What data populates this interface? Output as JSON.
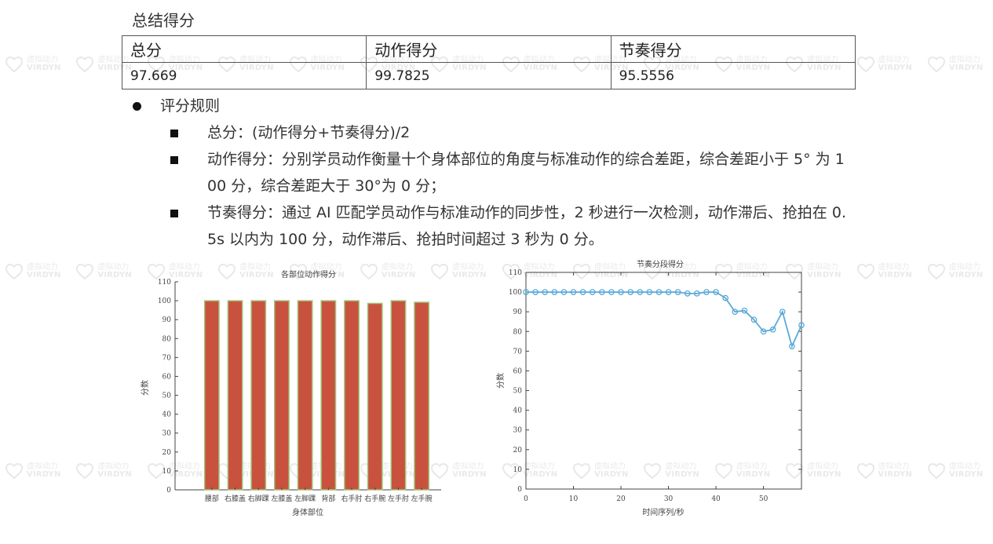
{
  "document": {
    "title": "总结得分",
    "scores": {
      "headers": [
        "总分",
        "动作得分",
        "节奏得分"
      ],
      "values": [
        "97.669",
        "99.7825",
        "95.5556"
      ]
    },
    "rules": {
      "heading": "评分规则",
      "items": [
        "总分：(动作得分+节奏得分)/2",
        "动作得分：分别学员动作衡量十个身体部位的角度与标准动作的综合差距，综合差距小于 5° 为 100 分，综合差距大于 30°为 0 分；",
        "节奏得分：通过 AI 匹配学员动作与标准动作的同步性，2 秒进行一次检测，动作滞后、抢拍在 0.5s 以内为 100 分，动作滞后、抢拍时间超过 3 秒为 0 分。"
      ]
    }
  },
  "watermark": {
    "text_cn": "虚拟动力",
    "text_en": "VIRDYN",
    "icon": "heart-logo-icon"
  },
  "chart_data": [
    {
      "type": "bar",
      "title": "各部位动作得分",
      "xlabel": "身体部位",
      "ylabel": "分数",
      "categories": [
        "腰部",
        "右膝盖",
        "右脚踝",
        "左膝盖",
        "左脚踝",
        "背部",
        "右手肘",
        "右手腕",
        "左手肘",
        "左手腕"
      ],
      "values": [
        100,
        100,
        100,
        100,
        100,
        100,
        100,
        98.6,
        100,
        99.2
      ],
      "ylim": [
        0,
        110
      ],
      "yticks": [
        0,
        10,
        20,
        30,
        40,
        50,
        60,
        70,
        80,
        90,
        100,
        110
      ],
      "grid": false,
      "colors": {
        "bar": "#c9523f",
        "edge": "#a2c47a"
      }
    },
    {
      "type": "line",
      "title": "节奏分段得分",
      "xlabel": "时间序列/秒",
      "ylabel": "分数",
      "x": [
        0,
        2,
        4,
        6,
        8,
        10,
        12,
        14,
        16,
        18,
        20,
        22,
        24,
        26,
        28,
        30,
        32,
        34,
        36,
        38,
        40,
        42,
        44,
        46,
        48,
        50,
        52,
        54,
        56,
        58
      ],
      "y": [
        100,
        100,
        100,
        100,
        100,
        100,
        100,
        100,
        100,
        100,
        100,
        100,
        100,
        100,
        100,
        100,
        100,
        99.3,
        99.3,
        100,
        100,
        97,
        90,
        90.6,
        86,
        80,
        81,
        90,
        72.5,
        83.2
      ],
      "xlim": [
        0,
        58
      ],
      "ylim": [
        0,
        110
      ],
      "xticks": [
        0,
        10,
        20,
        30,
        40,
        50
      ],
      "yticks": [
        0,
        10,
        20,
        30,
        40,
        50,
        60,
        70,
        80,
        90,
        100,
        110
      ],
      "grid": false,
      "colors": {
        "line": "#5aa9d8",
        "marker": "#5aa9d8"
      }
    }
  ]
}
